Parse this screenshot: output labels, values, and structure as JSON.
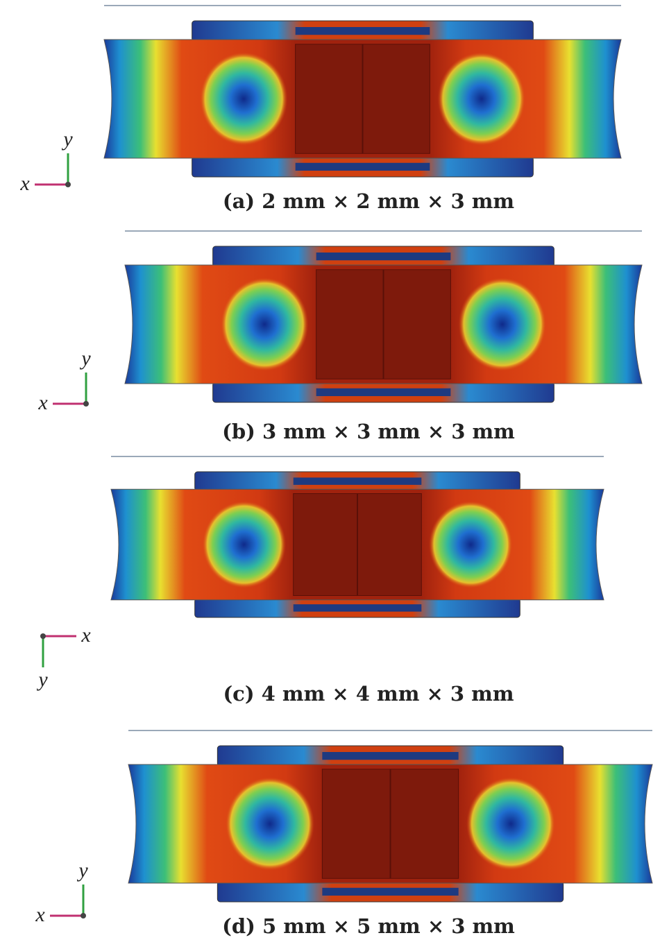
{
  "panels": [
    {
      "caption": "(a) 2 mm × 2 mm × 3 mm",
      "axes": {
        "x": "x",
        "y": "y"
      }
    },
    {
      "caption": "(b) 3 mm × 3 mm × 3 mm",
      "axes": {
        "x": "x",
        "y": "y"
      }
    },
    {
      "caption": "(c) 4 mm × 4 mm × 3 mm",
      "axes": {
        "x": "x",
        "y": "y"
      }
    },
    {
      "caption": "(d) 5 mm × 5 mm × 3 mm",
      "axes": {
        "x": "x",
        "y": "y"
      }
    }
  ]
}
